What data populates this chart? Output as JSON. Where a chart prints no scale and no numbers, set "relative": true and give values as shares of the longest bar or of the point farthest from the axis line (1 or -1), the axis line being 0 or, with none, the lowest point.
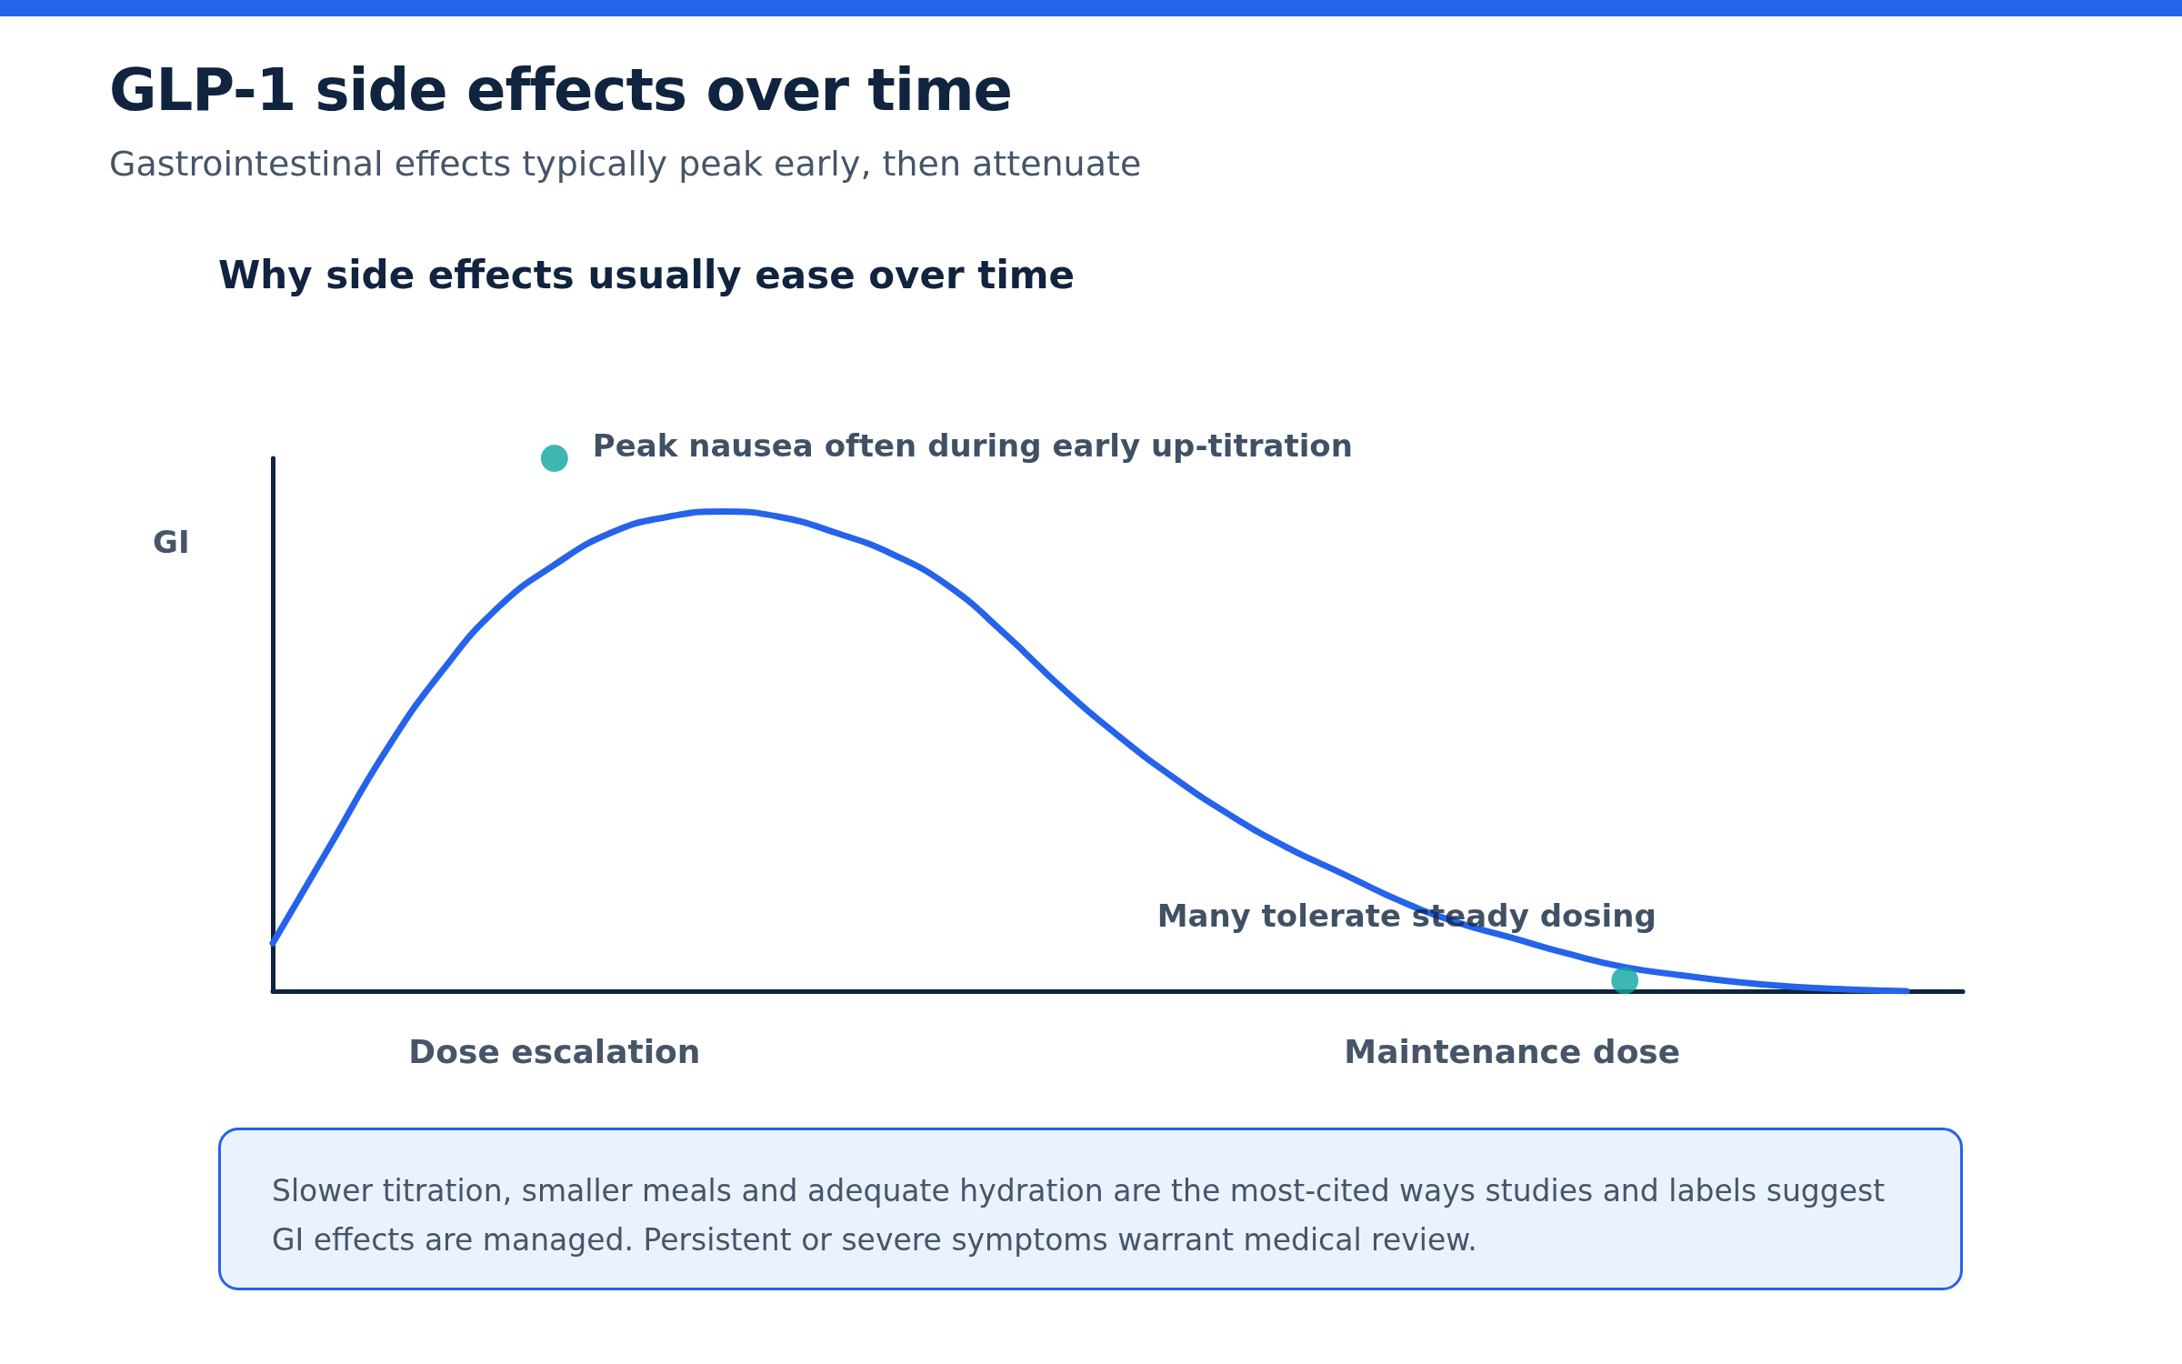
{
  "chart_data": {
    "type": "line",
    "title": "GLP-1 side effects over time",
    "subtitle": "Gastrointestinal effects typically peak early, then attenuate",
    "ylabel": "GI",
    "relative": true,
    "categories": [
      null,
      null,
      null,
      null,
      null,
      "Dose escalation",
      null,
      null,
      null,
      null,
      null,
      null,
      null,
      null,
      null,
      null,
      null,
      null,
      null,
      null,
      null,
      null,
      "Maintenance dose",
      null,
      null,
      null,
      null,
      null,
      null,
      null,
      null
    ],
    "grid": false,
    "series": [
      {
        "color": "#2563eb",
        "marker": "none",
        "line_style": "solid",
        "values": [
          0.09,
          0.27,
          0.45,
          0.6,
          0.72,
          0.8,
          0.86,
          0.89,
          0.9,
          0.89,
          0.86,
          0.82,
          0.76,
          0.67,
          0.57,
          0.48,
          0.4,
          0.33,
          0.27,
          0.22,
          0.17,
          0.13,
          0.1,
          0.07,
          0.045,
          0.03,
          0.017,
          0.008,
          0.003,
          0,
          null
        ]
      },
      {
        "type": "scatter",
        "color": "#0ea5a0",
        "marker": "circle",
        "values": [
          null,
          null,
          null,
          null,
          null,
          1,
          null,
          null,
          null,
          null,
          null,
          null,
          null,
          null,
          null,
          null,
          null,
          null,
          null,
          null,
          null,
          null,
          null,
          null,
          0.02,
          null,
          null,
          null,
          null,
          null,
          null
        ]
      }
    ],
    "annotations": [
      "Why side effects usually ease over time",
      "Peak nausea often during early up-titration",
      "Many tolerate steady dosing",
      "Slower titration, smaller meals and adequate hydration are the most-cited ways studies and labels suggest GI effects are managed. Persistent or severe symptoms warrant medical review."
    ]
  }
}
